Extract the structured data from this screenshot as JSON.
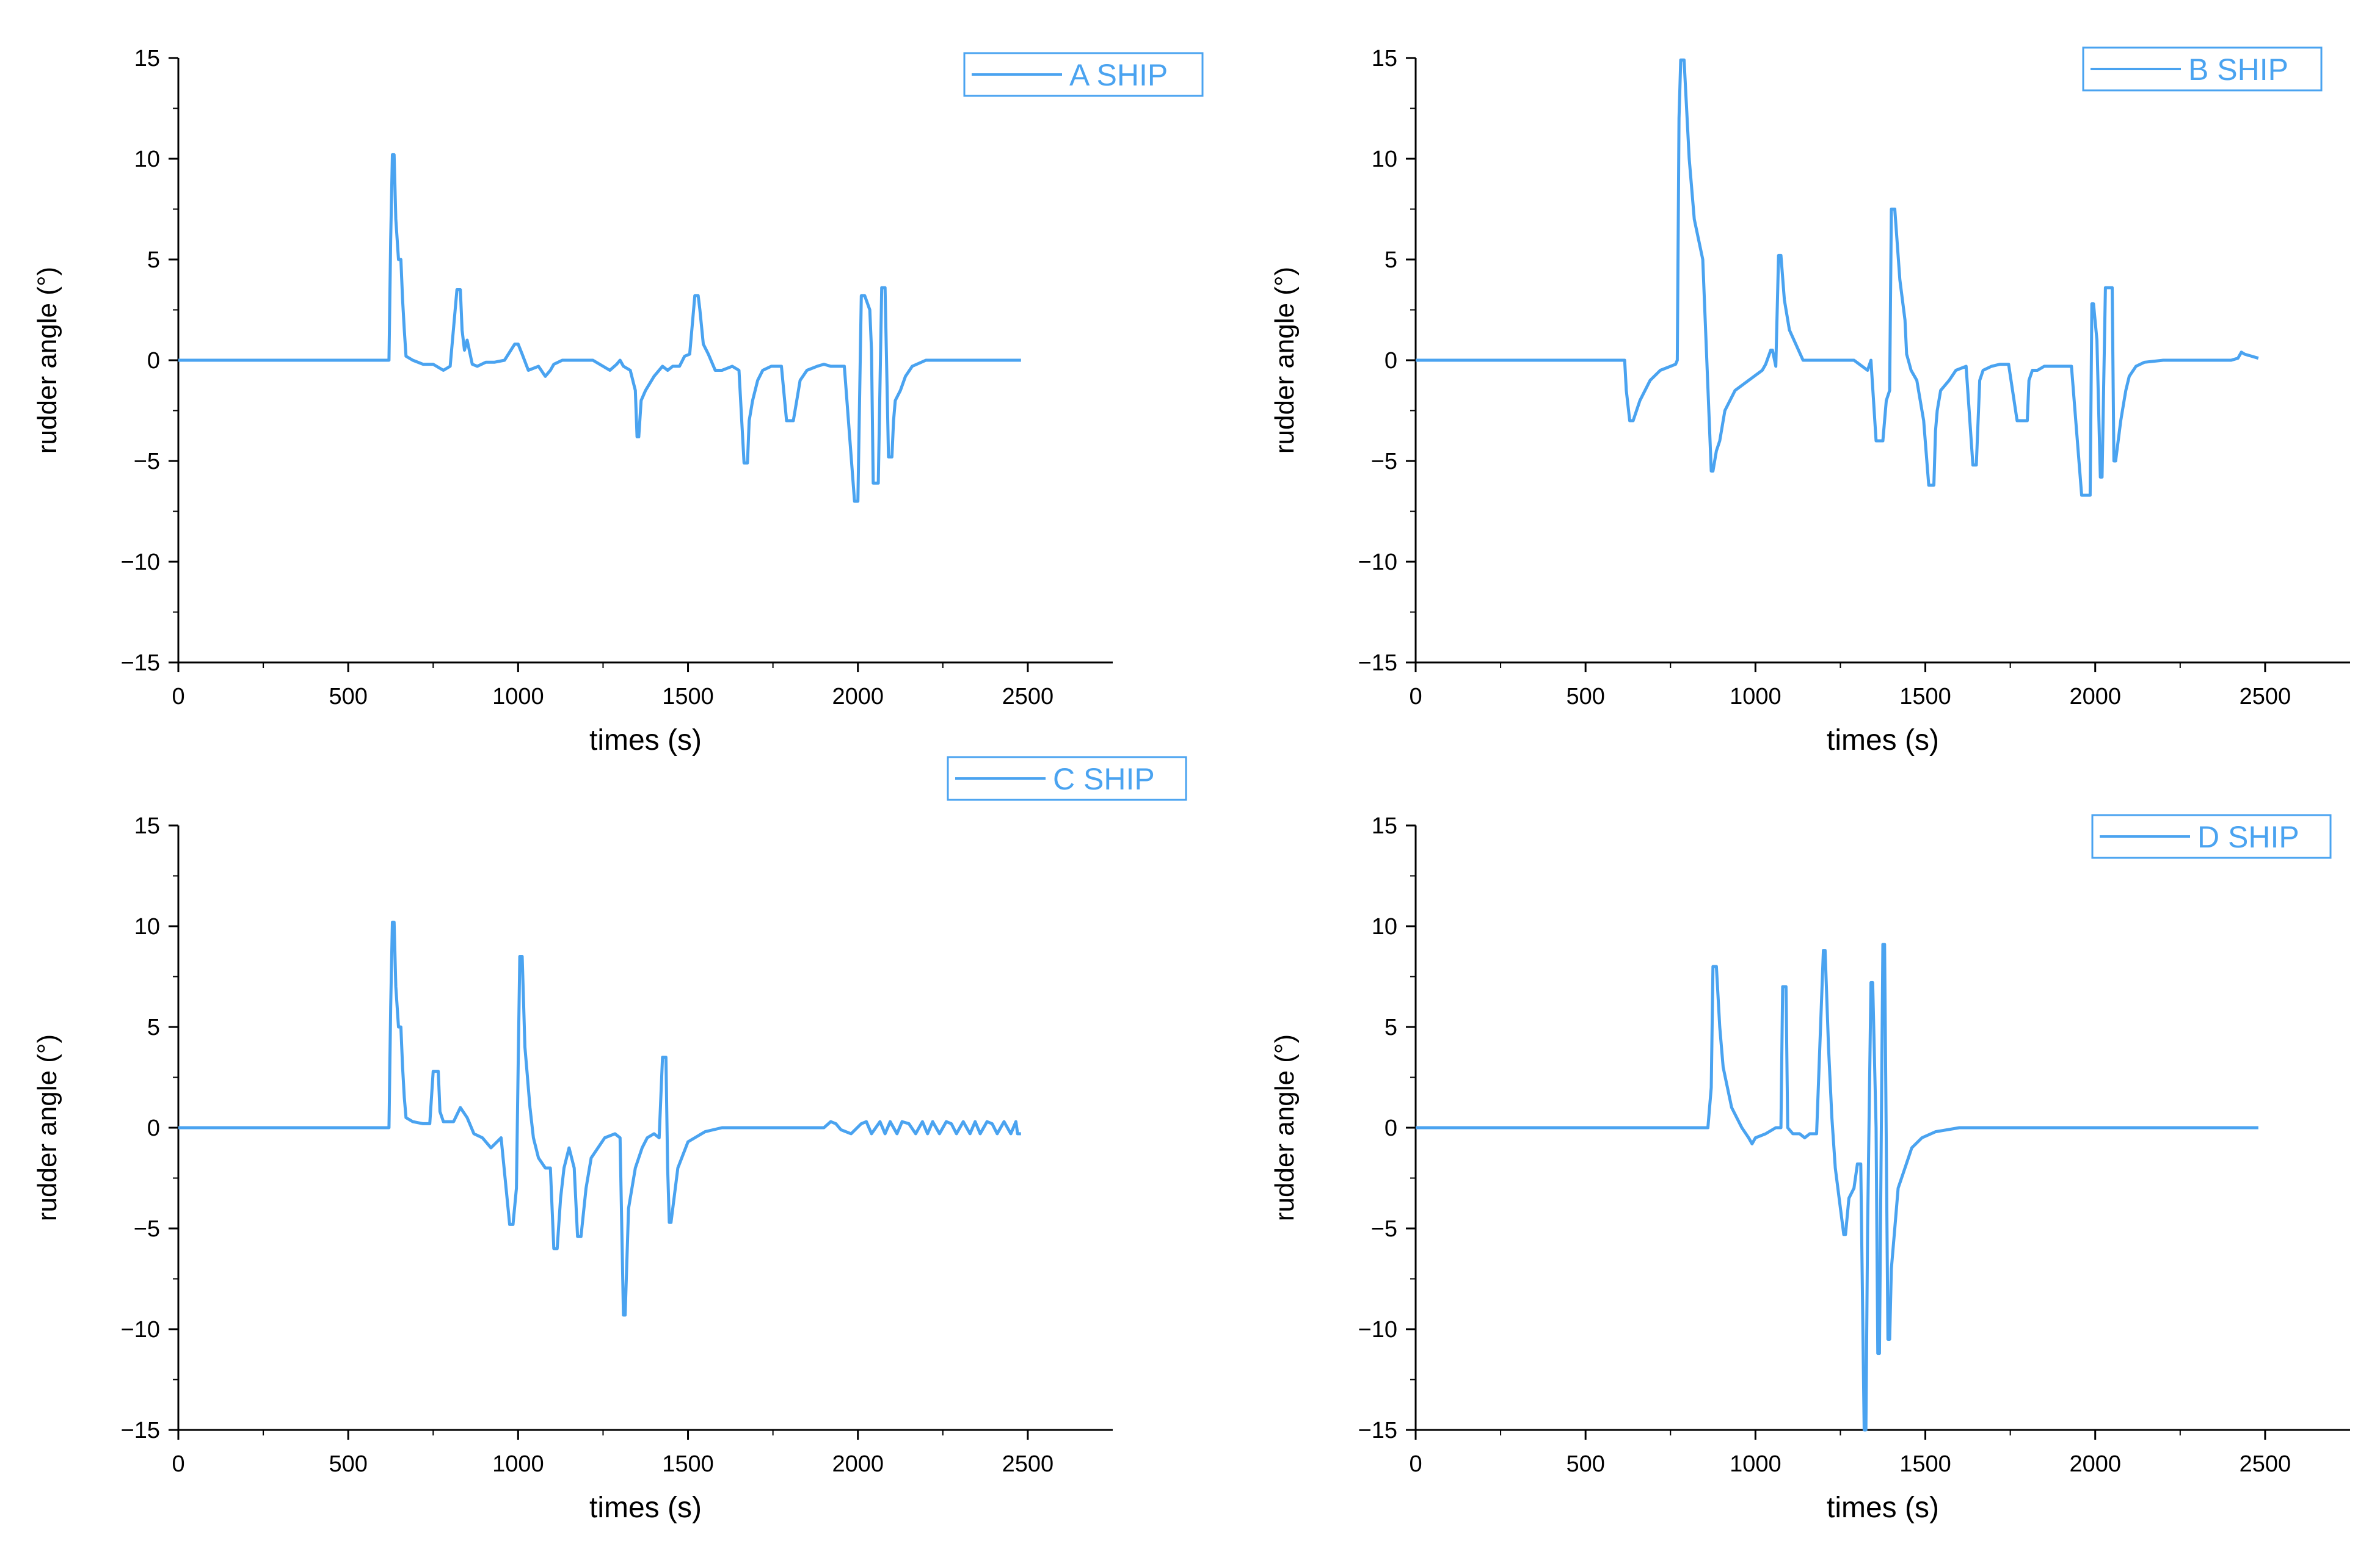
{
  "colors": {
    "series": "#4aa3f0",
    "axis": "#000000",
    "background": "#ffffff"
  },
  "chart_data": [
    {
      "type": "line",
      "panel": "top-left",
      "legend": "A SHIP",
      "legend_placement": "top-right",
      "xlabel": "times (s)",
      "ylabel": "rudder angle (°)",
      "xlim": [
        0,
        2750
      ],
      "ylim": [
        -15,
        15
      ],
      "xticks": [
        0,
        500,
        1000,
        1500,
        2000,
        2500
      ],
      "yticks": [
        15,
        10,
        5,
        0,
        -5,
        -10,
        -15
      ],
      "xtick_labels": [
        "0",
        "500",
        "1000",
        "1500",
        "2000",
        "2500"
      ],
      "ytick_labels": [
        "15",
        "10",
        "5",
        "0",
        "−5",
        "−10",
        "−15"
      ],
      "series": [
        {
          "name": "A SHIP",
          "x": [
            0,
            620,
            625,
            630,
            635,
            640,
            648,
            655,
            660,
            665,
            670,
            690,
            720,
            750,
            780,
            800,
            820,
            830,
            835,
            842,
            850,
            865,
            880,
            905,
            930,
            960,
            990,
            1000,
            1012,
            1030,
            1060,
            1080,
            1095,
            1105,
            1130,
            1170,
            1220,
            1270,
            1290,
            1300,
            1310,
            1330,
            1345,
            1350,
            1355,
            1362,
            1375,
            1400,
            1425,
            1440,
            1455,
            1475,
            1490,
            1505,
            1520,
            1530,
            1535,
            1545,
            1560,
            1580,
            1600,
            1630,
            1650,
            1665,
            1675,
            1680,
            1690,
            1705,
            1720,
            1745,
            1775,
            1790,
            1810,
            1820,
            1830,
            1850,
            1880,
            1900,
            1920,
            1945,
            1960,
            1990,
            2000,
            2010,
            2020,
            2035,
            2040,
            2045,
            2060,
            2070,
            2080,
            2090,
            2100,
            2105,
            2110,
            2125,
            2140,
            2160,
            2200,
            2300,
            2480
          ],
          "y": [
            0,
            0,
            6,
            10.2,
            10.2,
            7,
            5,
            5,
            3,
            1.5,
            0.2,
            0,
            -0.2,
            -0.2,
            -0.5,
            -0.3,
            3.5,
            3.5,
            1.5,
            0.5,
            1,
            -0.2,
            -0.3,
            -0.1,
            -0.1,
            0,
            0.8,
            0.8,
            0.3,
            -0.5,
            -0.3,
            -0.8,
            -0.5,
            -0.2,
            0,
            0,
            0,
            -0.5,
            -0.2,
            0,
            -0.3,
            -0.5,
            -1.5,
            -3.8,
            -3.8,
            -2,
            -1.5,
            -0.8,
            -0.3,
            -0.5,
            -0.3,
            -0.3,
            0.2,
            0.3,
            3.2,
            3.2,
            2.5,
            0.8,
            0.3,
            -0.5,
            -0.5,
            -0.3,
            -0.5,
            -5.1,
            -5.1,
            -3,
            -2,
            -1,
            -0.5,
            -0.3,
            -0.3,
            -3,
            -3,
            -2,
            -1,
            -0.5,
            -0.3,
            -0.2,
            -0.3,
            -0.3,
            -0.3,
            -7,
            -7,
            3.2,
            3.2,
            2.5,
            0.5,
            -6.1,
            -6.1,
            3.6,
            3.6,
            -4.8,
            -4.8,
            -3,
            -2,
            -1.5,
            -0.8,
            -0.3,
            0,
            0,
            0
          ]
        }
      ]
    },
    {
      "type": "line",
      "panel": "top-right",
      "legend": "B SHIP",
      "legend_placement": "top-right",
      "xlabel": "times (s)",
      "ylabel": "rudder angle (°)",
      "xlim": [
        0,
        2750
      ],
      "ylim": [
        -15,
        15
      ],
      "xticks": [
        0,
        500,
        1000,
        1500,
        2000,
        2500
      ],
      "yticks": [
        15,
        10,
        5,
        0,
        -5,
        -10,
        -15
      ],
      "xtick_labels": [
        "0",
        "500",
        "1000",
        "1500",
        "2000",
        "2500"
      ],
      "ytick_labels": [
        "15",
        "10",
        "5",
        "0",
        "−5",
        "−10",
        "−15"
      ],
      "series": [
        {
          "name": "B SHIP",
          "x": [
            0,
            615,
            620,
            630,
            640,
            660,
            690,
            720,
            750,
            765,
            770,
            775,
            780,
            790,
            805,
            820,
            845,
            870,
            875,
            885,
            895,
            910,
            940,
            980,
            1020,
            1030,
            1045,
            1050,
            1060,
            1068,
            1075,
            1085,
            1100,
            1140,
            1180,
            1230,
            1290,
            1330,
            1340,
            1355,
            1375,
            1385,
            1395,
            1400,
            1410,
            1425,
            1440,
            1445,
            1450,
            1458,
            1475,
            1495,
            1510,
            1525,
            1530,
            1535,
            1545,
            1570,
            1590,
            1620,
            1640,
            1650,
            1660,
            1670,
            1695,
            1720,
            1745,
            1770,
            1800,
            1805,
            1815,
            1830,
            1850,
            1880,
            1930,
            1960,
            1985,
            1990,
            1995,
            2005,
            2015,
            2020,
            2030,
            2050,
            2055,
            2060,
            2075,
            2085,
            2090,
            2100,
            2120,
            2145,
            2200,
            2300,
            2400,
            2420,
            2430,
            2440,
            2480
          ],
          "y": [
            0,
            0,
            -1.5,
            -3,
            -3,
            -2,
            -1,
            -0.5,
            -0.3,
            -0.2,
            0,
            12,
            14.9,
            14.9,
            10,
            7,
            5,
            -5.5,
            -5.5,
            -4.5,
            -4,
            -2.5,
            -1.5,
            -1,
            -0.5,
            -0.2,
            0.5,
            0.5,
            -0.3,
            5.2,
            5.2,
            3,
            1.5,
            0,
            0,
            0,
            0,
            -0.5,
            0,
            -4,
            -4,
            -2,
            -1.5,
            7.5,
            7.5,
            4,
            2,
            0.3,
            0,
            -0.5,
            -1,
            -3,
            -6.2,
            -6.2,
            -3.5,
            -2.5,
            -1.5,
            -1,
            -0.5,
            -0.3,
            -5.2,
            -5.2,
            -1,
            -0.5,
            -0.3,
            -0.2,
            -0.2,
            -3,
            -3,
            -1,
            -0.5,
            -0.5,
            -0.3,
            -0.3,
            -0.3,
            -6.7,
            -6.7,
            2.8,
            2.8,
            1,
            -5.8,
            -5.8,
            3.6,
            3.6,
            -5,
            -5,
            -3,
            -2,
            -1.5,
            -0.8,
            -0.3,
            -0.1,
            0,
            0,
            0,
            0.1,
            0.4,
            0.3,
            0.1
          ]
        }
      ]
    },
    {
      "type": "line",
      "panel": "bottom-left",
      "legend": "C SHIP",
      "legend_placement": "top-right",
      "xlabel": "times (s)",
      "ylabel": "rudder angle (°)",
      "xlim": [
        0,
        2750
      ],
      "ylim": [
        -15,
        15
      ],
      "xticks": [
        0,
        500,
        1000,
        1500,
        2000,
        2500
      ],
      "yticks": [
        15,
        10,
        5,
        0,
        -5,
        -10,
        -15
      ],
      "xtick_labels": [
        "0",
        "500",
        "1000",
        "1500",
        "2000",
        "2500"
      ],
      "ytick_labels": [
        "15",
        "10",
        "5",
        "0",
        "−5",
        "−10",
        "−15"
      ],
      "series": [
        {
          "name": "C SHIP",
          "x": [
            0,
            620,
            625,
            630,
            635,
            640,
            648,
            655,
            660,
            665,
            670,
            690,
            720,
            740,
            750,
            765,
            770,
            780,
            790,
            810,
            830,
            850,
            870,
            895,
            920,
            950,
            975,
            985,
            995,
            1000,
            1005,
            1012,
            1020,
            1025,
            1035,
            1045,
            1060,
            1080,
            1095,
            1105,
            1115,
            1125,
            1135,
            1150,
            1165,
            1175,
            1185,
            1200,
            1215,
            1235,
            1255,
            1285,
            1300,
            1310,
            1315,
            1325,
            1345,
            1365,
            1380,
            1400,
            1415,
            1425,
            1435,
            1440,
            1445,
            1450,
            1470,
            1500,
            1550,
            1600,
            1700,
            1900,
            1920,
            1935,
            1950,
            1980,
            2010,
            2025,
            2040,
            2065,
            2080,
            2095,
            2115,
            2130,
            2150,
            2170,
            2190,
            2205,
            2220,
            2240,
            2260,
            2275,
            2290,
            2310,
            2330,
            2345,
            2360,
            2380,
            2395,
            2410,
            2430,
            2450,
            2465,
            2470,
            2480
          ],
          "y": [
            0,
            0,
            6,
            10.2,
            10.2,
            7,
            5,
            5,
            3,
            1.5,
            0.5,
            0.3,
            0.2,
            0.2,
            2.8,
            2.8,
            0.8,
            0.3,
            0.3,
            0.3,
            1.0,
            0.5,
            -0.3,
            -0.5,
            -1,
            -0.5,
            -4.8,
            -4.8,
            -3,
            3,
            8.5,
            8.5,
            4,
            3,
            1,
            -0.5,
            -1.5,
            -2,
            -2,
            -6,
            -6,
            -3.5,
            -2,
            -1,
            -2,
            -5.4,
            -5.4,
            -3,
            -1.5,
            -1,
            -0.5,
            -0.3,
            -0.5,
            -9.3,
            -9.3,
            -4,
            -2,
            -1,
            -0.5,
            -0.3,
            -0.5,
            3.5,
            3.5,
            -2,
            -4.7,
            -4.7,
            -2,
            -0.7,
            -0.2,
            0,
            0,
            0,
            0.3,
            0.2,
            -0.1,
            -0.3,
            0.2,
            0.3,
            -0.3,
            0.3,
            -0.3,
            0.3,
            -0.3,
            0.3,
            0.2,
            -0.3,
            0.3,
            -0.3,
            0.3,
            -0.3,
            0.3,
            0.2,
            -0.3,
            0.3,
            -0.3,
            0.3,
            -0.3,
            0.3,
            0.2,
            -0.3,
            0.3,
            -0.3,
            0.3,
            -0.3,
            -0.3
          ]
        }
      ]
    },
    {
      "type": "line",
      "panel": "bottom-right",
      "legend": "D SHIP",
      "legend_placement": "top-right",
      "xlabel": "times (s)",
      "ylabel": "rudder angle (°)",
      "xlim": [
        0,
        2750
      ],
      "ylim": [
        -15,
        15
      ],
      "xticks": [
        0,
        500,
        1000,
        1500,
        2000,
        2500
      ],
      "yticks": [
        15,
        10,
        5,
        0,
        -5,
        -10,
        -15
      ],
      "xtick_labels": [
        "0",
        "500",
        "1000",
        "1500",
        "2000",
        "2500"
      ],
      "ytick_labels": [
        "15",
        "10",
        "5",
        "0",
        "−5",
        "−10",
        "−15"
      ],
      "series": [
        {
          "name": "D SHIP",
          "x": [
            0,
            860,
            870,
            875,
            885,
            895,
            905,
            930,
            960,
            980,
            990,
            1000,
            1030,
            1060,
            1075,
            1080,
            1090,
            1095,
            1110,
            1130,
            1145,
            1160,
            1180,
            1200,
            1205,
            1215,
            1225,
            1235,
            1250,
            1260,
            1265,
            1275,
            1290,
            1300,
            1310,
            1320,
            1325,
            1330,
            1340,
            1345,
            1355,
            1360,
            1365,
            1375,
            1380,
            1390,
            1395,
            1400,
            1410,
            1420,
            1440,
            1460,
            1490,
            1530,
            1600,
            1700,
            2480
          ],
          "y": [
            0,
            0,
            2,
            8,
            8,
            5,
            3,
            1,
            0,
            -0.5,
            -0.8,
            -0.5,
            -0.3,
            0,
            0,
            7,
            7,
            0,
            -0.3,
            -0.3,
            -0.5,
            -0.3,
            -0.3,
            8.8,
            8.8,
            4,
            0.5,
            -2,
            -4,
            -5.3,
            -5.3,
            -3.5,
            -3,
            -1.8,
            -1.8,
            -15,
            -15,
            -5,
            7.2,
            7.2,
            0,
            -11.2,
            -11.2,
            9.1,
            9.1,
            -10.5,
            -10.5,
            -7,
            -5,
            -3,
            -2,
            -1,
            -0.5,
            -0.2,
            0,
            0,
            0
          ]
        }
      ]
    }
  ]
}
